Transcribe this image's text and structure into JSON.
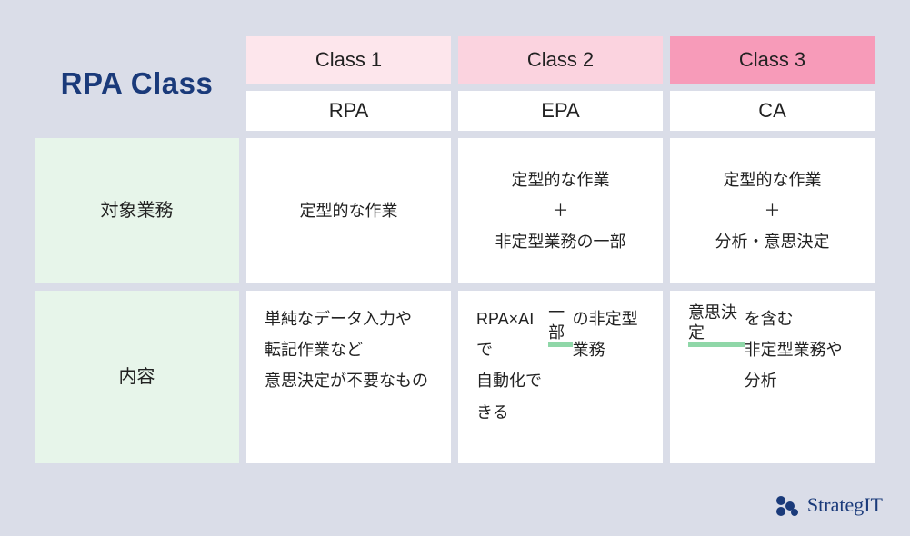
{
  "title": "RPA Class",
  "columns": [
    {
      "class_label": "Class 1",
      "sub_label": "RPA",
      "header_bg": "#fde6ec"
    },
    {
      "class_label": "Class 2",
      "sub_label": "EPA",
      "header_bg": "#fbd3df"
    },
    {
      "class_label": "Class 3",
      "sub_label": "CA",
      "header_bg": "#f79bb9"
    }
  ],
  "rows": [
    {
      "label": "対象業務",
      "cells": [
        {
          "html": "定型的な作業",
          "align": "center"
        },
        {
          "html": "定型的な作業<br>＋<br>非定型業務の一部",
          "align": "center"
        },
        {
          "html": "定型的な作業<br>＋<br>分析・意思決定",
          "align": "center"
        }
      ]
    },
    {
      "label": "内容",
      "cells": [
        {
          "html": "単純なデータ入力や<br>転記作業など<br>意思決定が不要なもの",
          "align": "left"
        },
        {
          "html": "RPA×AI で<br>自動化できる<br><span class=\"ul-green\">一部</span>の非定型業務",
          "align": "left"
        },
        {
          "html": "<span class=\"ul-green\">意思決定</span>を含む<br>非定型業務や分析",
          "align": "left"
        }
      ]
    }
  ],
  "footer_brand": "StrategIT",
  "colors": {
    "page_bg": "#dadde8",
    "row_label_bg": "#e7f5ea",
    "cell_bg": "#ffffff",
    "title_color": "#1a3a7a",
    "underline_green": "#8fd7a8"
  }
}
